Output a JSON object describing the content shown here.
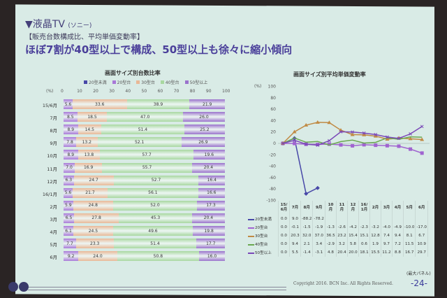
{
  "header": {
    "title": "▼液晶TV",
    "maker": "(ソニー)",
    "subtitle": "【販売台数構成比、平均単価変動率】",
    "headline": "ほぼ7割が40型以上で構成、50型以上も徐々に縮小傾向"
  },
  "footer": {
    "copyright": "Copyright 2016. BCN Inc. All Rights Reserved.",
    "page": "-24-",
    "note": "(最大パネル)"
  },
  "colors": {
    "u20": "#4848a8",
    "s20": "#a064d0",
    "s30": "#c08a44",
    "s40": "#6aa850",
    "s50": "#7a48b8",
    "bar20": "#a878d8",
    "bar30": "#e9b896",
    "bar40": "#a8d8a0",
    "bar50": "#9a72cc"
  },
  "chart_data": [
    {
      "type": "bar",
      "stacked": true,
      "orientation": "horizontal",
      "title": "画面サイズ別台数比率",
      "unit": "(%)",
      "ticks": [
        "0",
        "10",
        "20",
        "30",
        "40",
        "50",
        "60",
        "70",
        "80",
        "90",
        "100"
      ],
      "xlim": [
        0,
        100
      ],
      "legend": [
        "20型未満",
        "20型台",
        "30型台",
        "40型台",
        "50型以上"
      ],
      "categories": [
        "15/6月",
        "7月",
        "8月",
        "9月",
        "10月",
        "11月",
        "12月",
        "16/1月",
        "2月",
        "3月",
        "4月",
        "5月",
        "6月"
      ],
      "series": [
        {
          "name": "20型未満",
          "values": [
            0.0,
            0.0,
            0.0,
            0.0,
            null,
            null,
            null,
            null,
            null,
            null,
            null,
            null,
            null
          ]
        },
        {
          "name": "20型台",
          "values": [
            5.6,
            8.5,
            8.9,
            7.8,
            8.9,
            7.0,
            6.3,
            5.6,
            5.9,
            6.5,
            6.1,
            7.7,
            9.2
          ]
        },
        {
          "name": "30型台",
          "values": [
            33.6,
            18.5,
            14.5,
            13.2,
            13.8,
            16.9,
            24.7,
            21.7,
            24.8,
            27.8,
            24.5,
            23.3,
            24.0
          ]
        },
        {
          "name": "40型台",
          "values": [
            38.9,
            47.0,
            51.4,
            52.1,
            57.7,
            55.7,
            52.7,
            56.1,
            52.0,
            45.3,
            49.6,
            51.4,
            50.8
          ]
        },
        {
          "name": "50型以上",
          "values": [
            21.9,
            26.0,
            25.2,
            26.9,
            19.6,
            20.4,
            16.4,
            16.6,
            17.3,
            20.4,
            19.8,
            17.7,
            16.0
          ]
        }
      ]
    },
    {
      "type": "line",
      "title": "画面サイズ別平均単価変動率",
      "unit": "(%)",
      "ylim": [
        -100,
        100
      ],
      "yticks": [
        "100",
        "80",
        "60",
        "40",
        "20",
        "0",
        "-20",
        "-40",
        "-60",
        "-80",
        "-100"
      ],
      "categories": [
        "15/\n6月",
        "7月",
        "8月",
        "9月",
        "10月",
        "11月",
        "12月",
        "16/\n1月",
        "2月",
        "3月",
        "4月",
        "5月",
        "6月"
      ],
      "series": [
        {
          "name": "20型未満",
          "marker": "diamond",
          "values": [
            0.0,
            9.0,
            -88.2,
            -78.2,
            null,
            null,
            null,
            null,
            null,
            null,
            null,
            null,
            null
          ]
        },
        {
          "name": "20型台",
          "marker": "square",
          "values": [
            0.0,
            -0.1,
            -1.5,
            -1.9,
            -1.3,
            -2.6,
            -4.2,
            -2.3,
            -3.2,
            -4.0,
            -4.9,
            -10.0,
            -17.0
          ]
        },
        {
          "name": "30型台",
          "marker": "triangle",
          "values": [
            0.0,
            20.3,
            32.0,
            37.0,
            36.5,
            23.2,
            15.4,
            15.1,
            12.8,
            7.4,
            9.4,
            8.1,
            6.7
          ]
        },
        {
          "name": "40型台",
          "marker": "none",
          "values": [
            0.0,
            9.4,
            2.1,
            3.4,
            -2.9,
            3.2,
            5.8,
            0.6,
            1.9,
            9.7,
            7.2,
            11.5,
            10.9
          ]
        },
        {
          "name": "50型以上",
          "marker": "x",
          "values": [
            0.0,
            5.5,
            -1.4,
            -3.1,
            4.8,
            20.4,
            20.0,
            18.1,
            15.5,
            11.2,
            8.8,
            16.7,
            29.7
          ]
        }
      ]
    }
  ]
}
